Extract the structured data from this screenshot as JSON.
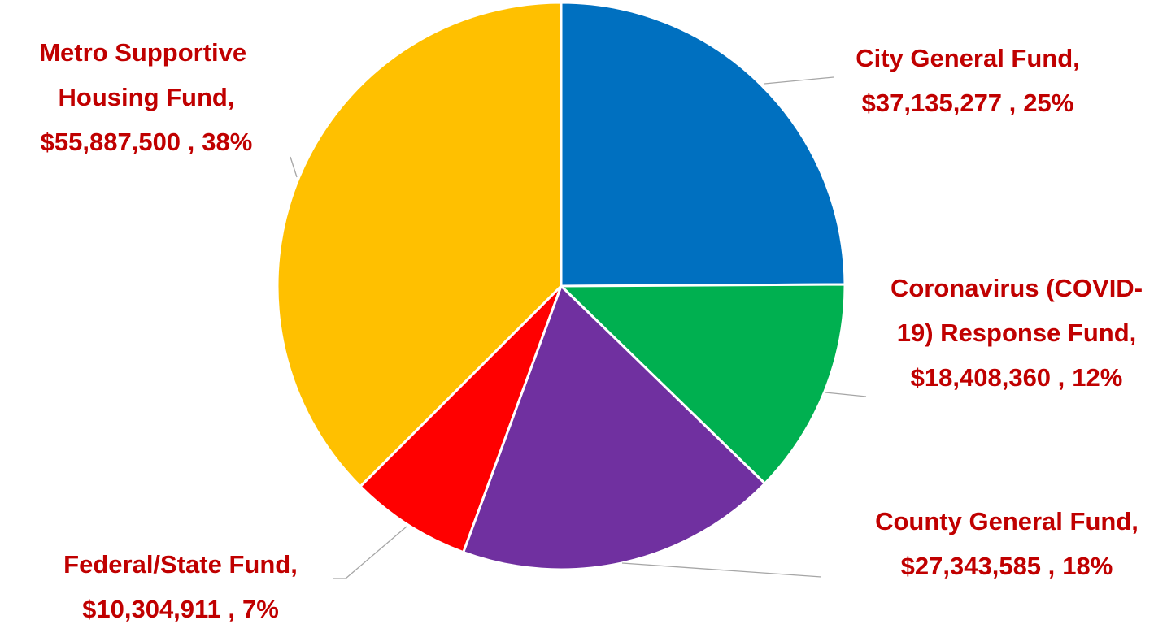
{
  "chart_data": {
    "type": "pie",
    "categories": [
      "City General Fund,",
      "Coronavirus (COVID-19) Response Fund,",
      "County General Fund,",
      "Federal/State Fund,",
      "Metro Supportive Housing Fund,"
    ],
    "values": [
      37135277,
      18408360,
      27343585,
      10304911,
      55887500
    ],
    "value_labels": [
      "$37,135,277 ,",
      "$18,408,360 ,",
      "$27,343,585 ,",
      "$10,304,911 ,",
      "$55,887,500 ,"
    ],
    "percents": [
      25,
      12,
      18,
      7,
      38
    ],
    "percent_labels": [
      "25%",
      "12%",
      "18%",
      "7%",
      "38%"
    ],
    "colors": [
      "#0070c0",
      "#00b050",
      "#7030a0",
      "#ff0000",
      "#ffc000"
    ]
  }
}
